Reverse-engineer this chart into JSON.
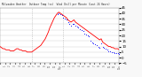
{
  "title": "Milwaukee Weather  Outdoor Temp (vs)  Wind Chill per Minute (Last 24 Hours)",
  "bg_color": "#f8f8f8",
  "plot_bg": "#ffffff",
  "line_color": "#ff0000",
  "wind_color": "#0000ff",
  "grid_color": "#cccccc",
  "vline_color": "#aaaaaa",
  "y_label_color": "#000000",
  "ylim": [
    -5,
    45
  ],
  "yticks": [
    -5,
    0,
    5,
    10,
    15,
    20,
    25,
    30,
    35,
    40,
    45
  ],
  "vline_positions": [
    0.27,
    0.53
  ],
  "temp_data": [
    10,
    9,
    8,
    8,
    7,
    7,
    7,
    6,
    6,
    6,
    7,
    8,
    8,
    7,
    7,
    6,
    6,
    6,
    5,
    5,
    5,
    5,
    6,
    7,
    8,
    9,
    10,
    11,
    13,
    15,
    17,
    20,
    23,
    27,
    30,
    33,
    36,
    38,
    40,
    41,
    40,
    39,
    38,
    37,
    36,
    34,
    33,
    32,
    33,
    34,
    32,
    31,
    30,
    29,
    28,
    27,
    26,
    25,
    24,
    23,
    22,
    21,
    20,
    19,
    18,
    17,
    16,
    17,
    14,
    13,
    12,
    11,
    10,
    10,
    9,
    9,
    8,
    8,
    8,
    7
  ],
  "wind_data": [
    10,
    9,
    8,
    8,
    7,
    7,
    7,
    6,
    6,
    6,
    7,
    8,
    8,
    7,
    7,
    6,
    6,
    6,
    5,
    5,
    5,
    5,
    6,
    7,
    8,
    9,
    10,
    11,
    13,
    15,
    17,
    20,
    23,
    27,
    30,
    33,
    36,
    38,
    39,
    40,
    39,
    38,
    36,
    35,
    34,
    32,
    30,
    29,
    30,
    30,
    29,
    28,
    27,
    26,
    25,
    24,
    22,
    21,
    20,
    19,
    15,
    14,
    13,
    12,
    11,
    10,
    9,
    13,
    10,
    9,
    8,
    7,
    6,
    6,
    5,
    5,
    4,
    4,
    4,
    3
  ],
  "time_labels": [
    "12a",
    "1",
    "2",
    "3",
    "4",
    "5",
    "6",
    "7",
    "8",
    "9",
    "10",
    "11",
    "12p",
    "1",
    "2",
    "3",
    "4",
    "5",
    "6",
    "7",
    "8",
    "9",
    "10",
    "11",
    "12a"
  ]
}
